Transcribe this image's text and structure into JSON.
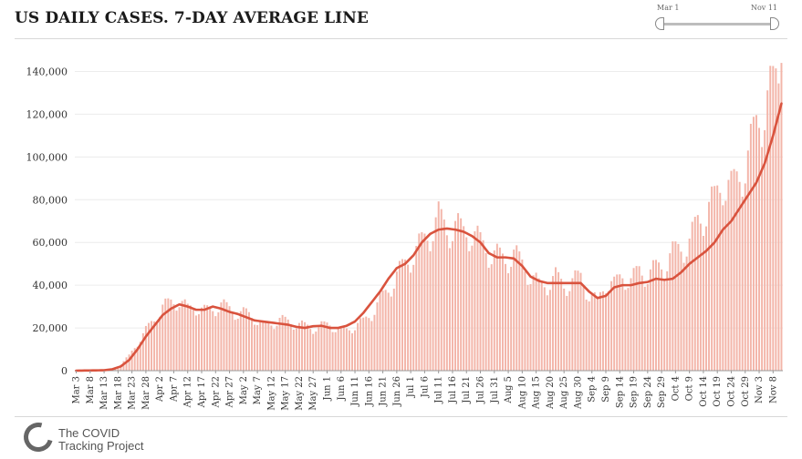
{
  "header": {
    "title": "US DAILY CASES. 7-DAY AVERAGE LINE"
  },
  "range_slider": {
    "start_label": "Mar 1",
    "end_label": "Nov 11"
  },
  "footer": {
    "logo_line1": "The COVID",
    "logo_line2": "Tracking Project"
  },
  "colors": {
    "bar": "#f3b5a9",
    "line": "#d9533e",
    "grid": "#ececec",
    "axis_text": "#333333"
  },
  "chart_data": {
    "type": "bar",
    "title": "US DAILY CASES. 7-DAY AVERAGE LINE",
    "xlabel": "",
    "ylabel": "",
    "ylim": [
      0,
      150000
    ],
    "yticks": [
      0,
      20000,
      40000,
      60000,
      80000,
      100000,
      120000,
      140000
    ],
    "ytick_labels": [
      "0",
      "20,000",
      "40,000",
      "60,000",
      "80,000",
      "100,000",
      "120,000",
      "140,000"
    ],
    "start_date": "Mar 3",
    "num_days": 254,
    "tick_labels": [
      "Mar 3",
      "Mar 8",
      "Mar 13",
      "Mar 18",
      "Mar 23",
      "Mar 28",
      "Apr 2",
      "Apr 7",
      "Apr 12",
      "Apr 17",
      "Apr 22",
      "Apr 27",
      "May 2",
      "May 7",
      "May 12",
      "May 17",
      "May 22",
      "May 27",
      "Jun 1",
      "Jun 6",
      "Jun 11",
      "Jun 16",
      "Jun 21",
      "Jun 26",
      "Jul 1",
      "Jul 6",
      "Jul 11",
      "Jul 16",
      "Jul 21",
      "Jul 26",
      "Jul 31",
      "Aug 5",
      "Aug 10",
      "Aug 15",
      "Aug 20",
      "Aug 25",
      "Aug 30",
      "Sep 4",
      "Sep 9",
      "Sep 14",
      "Sep 19",
      "Sep 24",
      "Sep 29",
      "Oct 4",
      "Oct 9",
      "Oct 14",
      "Oct 19",
      "Oct 24",
      "Oct 29",
      "Nov 3",
      "Nov 8"
    ],
    "tick_interval_days": 5,
    "series": [
      {
        "name": "Daily cases",
        "style": "bars",
        "anchors": [
          [
            0,
            0
          ],
          [
            10,
            300
          ],
          [
            13,
            1000
          ],
          [
            16,
            3000
          ],
          [
            19,
            7000
          ],
          [
            22,
            13000
          ],
          [
            25,
            19000
          ],
          [
            28,
            24000
          ],
          [
            31,
            30000
          ],
          [
            34,
            32000
          ],
          [
            37,
            33000
          ],
          [
            40,
            29000
          ],
          [
            43,
            30000
          ],
          [
            46,
            28000
          ],
          [
            49,
            29000
          ],
          [
            52,
            31000
          ],
          [
            55,
            29000
          ],
          [
            58,
            27000
          ],
          [
            61,
            27000
          ],
          [
            64,
            25000
          ],
          [
            67,
            21000
          ],
          [
            70,
            22000
          ],
          [
            73,
            24000
          ],
          [
            76,
            23000
          ],
          [
            79,
            22000
          ],
          [
            82,
            21000
          ],
          [
            85,
            20000
          ],
          [
            88,
            21000
          ],
          [
            91,
            22000
          ],
          [
            94,
            19000
          ],
          [
            97,
            19000
          ],
          [
            100,
            21000
          ],
          [
            103,
            23000
          ],
          [
            106,
            27000
          ],
          [
            109,
            33000
          ],
          [
            112,
            38000
          ],
          [
            115,
            45000
          ],
          [
            118,
            50000
          ],
          [
            121,
            55000
          ],
          [
            124,
            60000
          ],
          [
            127,
            65000
          ],
          [
            130,
            72000
          ],
          [
            133,
            66000
          ],
          [
            136,
            68000
          ],
          [
            139,
            65000
          ],
          [
            142,
            65000
          ],
          [
            145,
            60000
          ],
          [
            148,
            56000
          ],
          [
            151,
            54000
          ],
          [
            154,
            52000
          ],
          [
            157,
            55000
          ],
          [
            160,
            50000
          ],
          [
            163,
            45000
          ],
          [
            166,
            40000
          ],
          [
            169,
            41000
          ],
          [
            172,
            44000
          ],
          [
            175,
            40000
          ],
          [
            178,
            42000
          ],
          [
            181,
            44000
          ],
          [
            184,
            36000
          ],
          [
            187,
            32000
          ],
          [
            190,
            42000
          ],
          [
            193,
            40000
          ],
          [
            196,
            45000
          ],
          [
            199,
            42000
          ],
          [
            202,
            47000
          ],
          [
            205,
            45000
          ],
          [
            208,
            48000
          ],
          [
            211,
            50000
          ],
          [
            214,
            55000
          ],
          [
            217,
            58000
          ],
          [
            220,
            60000
          ],
          [
            223,
            70000
          ],
          [
            226,
            75000
          ],
          [
            229,
            80000
          ],
          [
            232,
            90000
          ],
          [
            235,
            85000
          ],
          [
            238,
            92000
          ],
          [
            241,
            100000
          ],
          [
            244,
            115000
          ],
          [
            247,
            125000
          ],
          [
            250,
            132000
          ],
          [
            253,
            144000
          ]
        ]
      },
      {
        "name": "7-day average",
        "style": "line",
        "anchors": [
          [
            0,
            0
          ],
          [
            10,
            200
          ],
          [
            13,
            700
          ],
          [
            16,
            2000
          ],
          [
            19,
            5000
          ],
          [
            22,
            10000
          ],
          [
            25,
            16000
          ],
          [
            28,
            21000
          ],
          [
            31,
            26000
          ],
          [
            34,
            29000
          ],
          [
            37,
            31000
          ],
          [
            40,
            30000
          ],
          [
            43,
            28500
          ],
          [
            46,
            28500
          ],
          [
            49,
            30000
          ],
          [
            52,
            29000
          ],
          [
            55,
            27500
          ],
          [
            58,
            26500
          ],
          [
            61,
            25000
          ],
          [
            64,
            23500
          ],
          [
            67,
            23000
          ],
          [
            70,
            22500
          ],
          [
            73,
            22000
          ],
          [
            76,
            21500
          ],
          [
            79,
            20500
          ],
          [
            82,
            20000
          ],
          [
            85,
            20800
          ],
          [
            88,
            21000
          ],
          [
            91,
            20000
          ],
          [
            94,
            20000
          ],
          [
            97,
            21000
          ],
          [
            100,
            23000
          ],
          [
            103,
            27000
          ],
          [
            106,
            32000
          ],
          [
            109,
            37000
          ],
          [
            112,
            43000
          ],
          [
            115,
            48000
          ],
          [
            118,
            50000
          ],
          [
            121,
            54000
          ],
          [
            124,
            60000
          ],
          [
            127,
            64000
          ],
          [
            130,
            66000
          ],
          [
            133,
            66500
          ],
          [
            136,
            66000
          ],
          [
            139,
            65000
          ],
          [
            142,
            63000
          ],
          [
            145,
            60000
          ],
          [
            148,
            55000
          ],
          [
            151,
            53000
          ],
          [
            154,
            53000
          ],
          [
            157,
            52500
          ],
          [
            160,
            49000
          ],
          [
            163,
            44000
          ],
          [
            166,
            42000
          ],
          [
            169,
            41000
          ],
          [
            172,
            41000
          ],
          [
            175,
            41000
          ],
          [
            178,
            41000
          ],
          [
            181,
            41000
          ],
          [
            184,
            37000
          ],
          [
            187,
            34000
          ],
          [
            190,
            35000
          ],
          [
            193,
            39000
          ],
          [
            196,
            40000
          ],
          [
            199,
            40000
          ],
          [
            202,
            41000
          ],
          [
            205,
            41500
          ],
          [
            208,
            43000
          ],
          [
            211,
            42500
          ],
          [
            214,
            43000
          ],
          [
            217,
            46000
          ],
          [
            220,
            50000
          ],
          [
            223,
            53000
          ],
          [
            226,
            56000
          ],
          [
            229,
            60000
          ],
          [
            232,
            66000
          ],
          [
            235,
            70000
          ],
          [
            238,
            76000
          ],
          [
            241,
            82000
          ],
          [
            244,
            88000
          ],
          [
            247,
            97000
          ],
          [
            250,
            110000
          ],
          [
            253,
            125000
          ]
        ]
      }
    ]
  }
}
